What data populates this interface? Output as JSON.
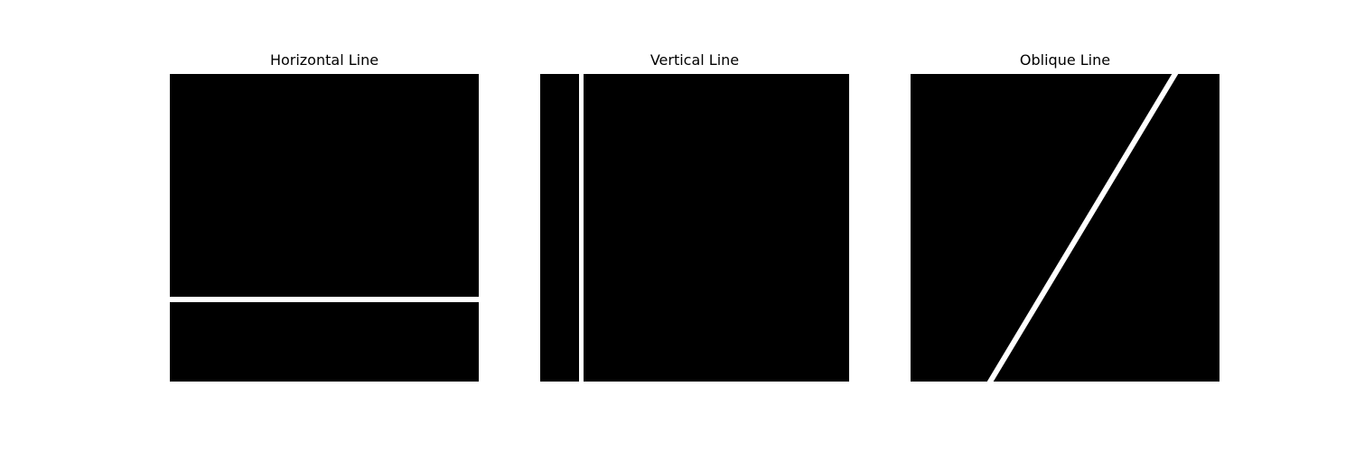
{
  "figure": {
    "panels": [
      {
        "title": "Horizontal Line"
      },
      {
        "title": "Vertical Line"
      },
      {
        "title": "Oblique Line"
      }
    ],
    "background_color": "#000000",
    "line_color": "#ffffff"
  }
}
